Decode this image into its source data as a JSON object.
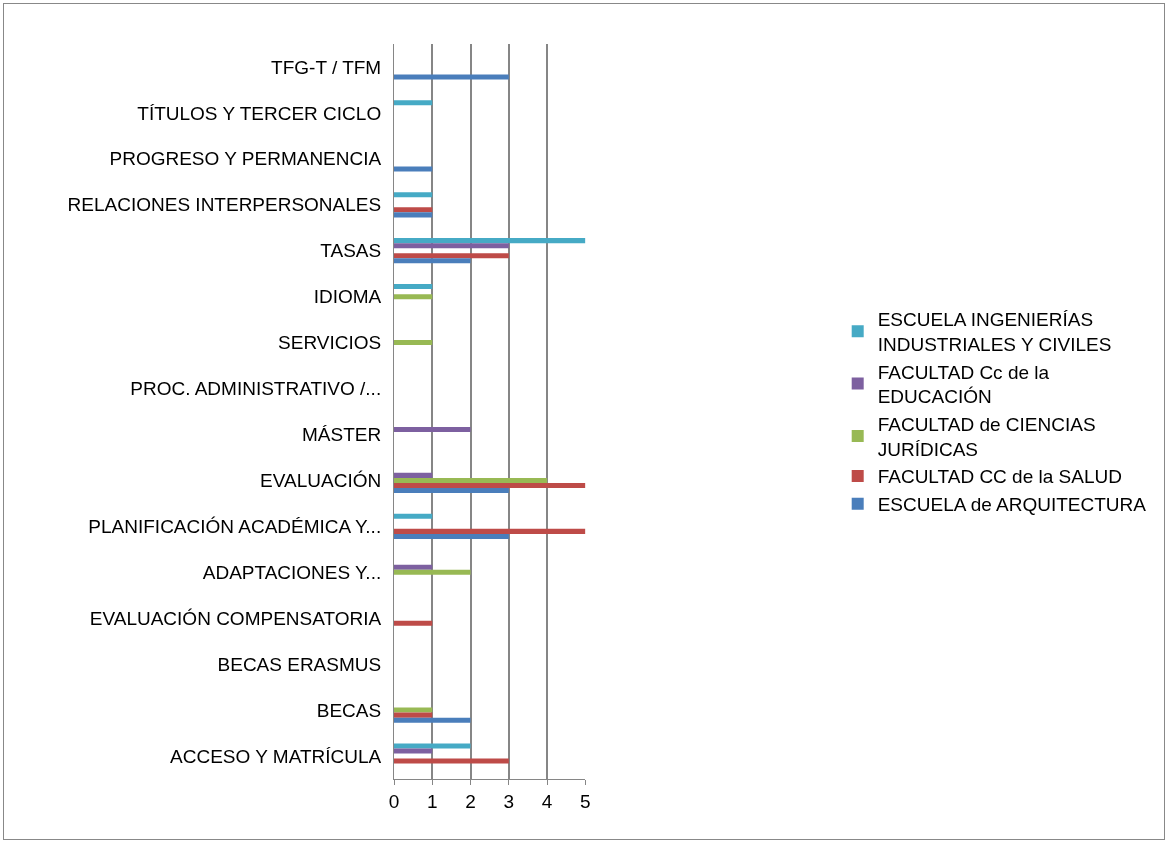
{
  "chart_data": {
    "type": "bar",
    "orientation": "horizontal",
    "categories": [
      "TFG-T / TFM",
      "TÍTULOS Y TERCER CICLO",
      "PROGRESO Y PERMANENCIA",
      "RELACIONES INTERPERSONALES",
      "TASAS",
      "IDIOMA",
      "SERVICIOS",
      "PROC. ADMINISTRATIVO /...",
      "MÁSTER",
      "EVALUACIÓN",
      "PLANIFICACIÓN ACADÉMICA Y...",
      "ADAPTACIONES Y...",
      "EVALUACIÓN COMPENSATORIA",
      "BECAS ERASMUS",
      "BECAS",
      "ACCESO Y MATRÍCULA"
    ],
    "series": [
      {
        "name": "ESCUELA de ARQUITECTURA",
        "color": "#4a7ebb",
        "values": [
          3,
          0,
          1,
          1,
          2,
          0,
          0,
          0,
          0,
          3,
          3,
          0,
          0,
          0,
          2,
          0
        ]
      },
      {
        "name": "FACULTAD CC de la SALUD",
        "color": "#be4b48",
        "values": [
          0,
          0,
          0,
          1,
          3,
          0,
          0,
          0,
          0,
          5,
          5,
          0,
          1,
          0,
          1,
          3
        ]
      },
      {
        "name": "FACULTAD de CIENCIAS JURÍDICAS",
        "color": "#98b954",
        "values": [
          0,
          0,
          0,
          0,
          0,
          1,
          1,
          0,
          0,
          4,
          0,
          2,
          0,
          0,
          1,
          0
        ]
      },
      {
        "name": "FACULTAD Cc de la EDUCACIÓN",
        "color": "#7d60a0",
        "values": [
          0,
          0,
          0,
          0,
          3,
          0,
          0,
          0,
          2,
          1,
          0,
          1,
          0,
          0,
          0,
          1
        ]
      },
      {
        "name": "ESCUELA INGENIERÍAS INDUSTRIALES Y CIVILES",
        "color": "#46aac5",
        "values": [
          0,
          1,
          0,
          1,
          5,
          1,
          0,
          0,
          0,
          0,
          1,
          0,
          0,
          0,
          0,
          2
        ]
      }
    ],
    "xlim": [
      0,
      5
    ],
    "xticks": [
      0,
      1,
      2,
      3,
      4,
      5
    ],
    "grid": "x",
    "legend": "right"
  }
}
